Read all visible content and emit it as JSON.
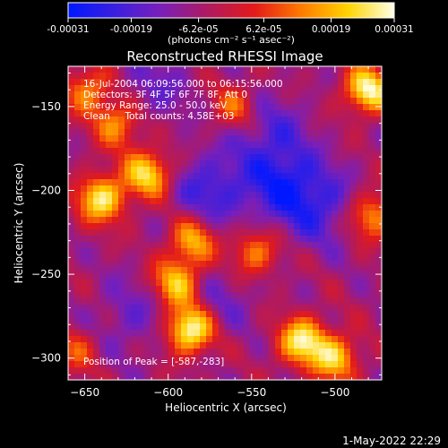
{
  "colorbar": {
    "ticks": [
      "-0.00031",
      "-0.00019",
      "-6.2e-05",
      "6.2e-05",
      "0.00019",
      "0.00031"
    ],
    "tick_values": [
      -0.00031,
      -0.00019,
      -6.2e-05,
      6.2e-05,
      0.00019,
      0.00031
    ],
    "range": [
      -0.00031,
      0.00031
    ],
    "units": "(photons cm⁻² s⁻¹ asec⁻²)",
    "stops": [
      "#0018ff",
      "#3a1fe0",
      "#7a1fb8",
      "#b01a60",
      "#e31a1a",
      "#ff7a00",
      "#ffd400",
      "#ffffe8"
    ]
  },
  "chart_data": {
    "type": "heatmap",
    "title": "Reconstructed RHESSI Image",
    "xlabel": "Heliocentric X (arcsec)",
    "ylabel": "Heliocentric Y (arcsec)",
    "xlim": [
      -660,
      -472
    ],
    "ylim": [
      -313,
      -126
    ],
    "xticks": [
      -650,
      -600,
      -550,
      -500
    ],
    "yticks": [
      -150,
      -200,
      -250,
      -300
    ],
    "x_tick_labels": [
      "−650",
      "−600",
      "−550",
      "−500"
    ],
    "y_tick_labels": [
      "−150",
      "−200",
      "−250",
      "−300"
    ],
    "peak": [
      -587,
      -283
    ],
    "annotations": [
      "16-Jul-2004 06:09:56.000 to 06:15:56.000",
      "Detectors: 3F 4F 5F 6F 7F 8F, Att 0",
      "Energy Range: 25.0 - 50.0 keV",
      "Clean     Total counts: 4.58E+03"
    ],
    "peak_label": "Position of Peak = [-587,-283]",
    "blobs": [
      {
        "x": -587,
        "y": -283,
        "amp": 1.0
      },
      {
        "x": -640,
        "y": -205,
        "amp": 0.85
      },
      {
        "x": -612,
        "y": -190,
        "amp": 0.8
      },
      {
        "x": -595,
        "y": -255,
        "amp": 0.75
      },
      {
        "x": -630,
        "y": -160,
        "amp": 0.6
      },
      {
        "x": -648,
        "y": -140,
        "amp": 0.55
      },
      {
        "x": -520,
        "y": -290,
        "amp": 0.85
      },
      {
        "x": -500,
        "y": -300,
        "amp": 0.7
      },
      {
        "x": -480,
        "y": -140,
        "amp": 0.9
      },
      {
        "x": -478,
        "y": -215,
        "amp": 0.6
      },
      {
        "x": -548,
        "y": -237,
        "amp": 0.55
      },
      {
        "x": -560,
        "y": -150,
        "amp": 0.45
      },
      {
        "x": -655,
        "y": -295,
        "amp": 0.35
      },
      {
        "x": -585,
        "y": -230,
        "amp": 0.65
      }
    ],
    "dips": [
      {
        "x": -575,
        "y": -200,
        "amp": 0.6
      },
      {
        "x": -532,
        "y": -196,
        "amp": 0.7
      },
      {
        "x": -510,
        "y": -210,
        "amp": 0.55
      },
      {
        "x": -540,
        "y": -165,
        "amp": 0.45
      },
      {
        "x": -610,
        "y": -140,
        "amp": 0.35
      },
      {
        "x": -622,
        "y": -275,
        "amp": 0.35
      },
      {
        "x": -570,
        "y": -265,
        "amp": 0.3
      }
    ]
  },
  "footer": {
    "timestamp": "1-May-2022 22:29"
  }
}
